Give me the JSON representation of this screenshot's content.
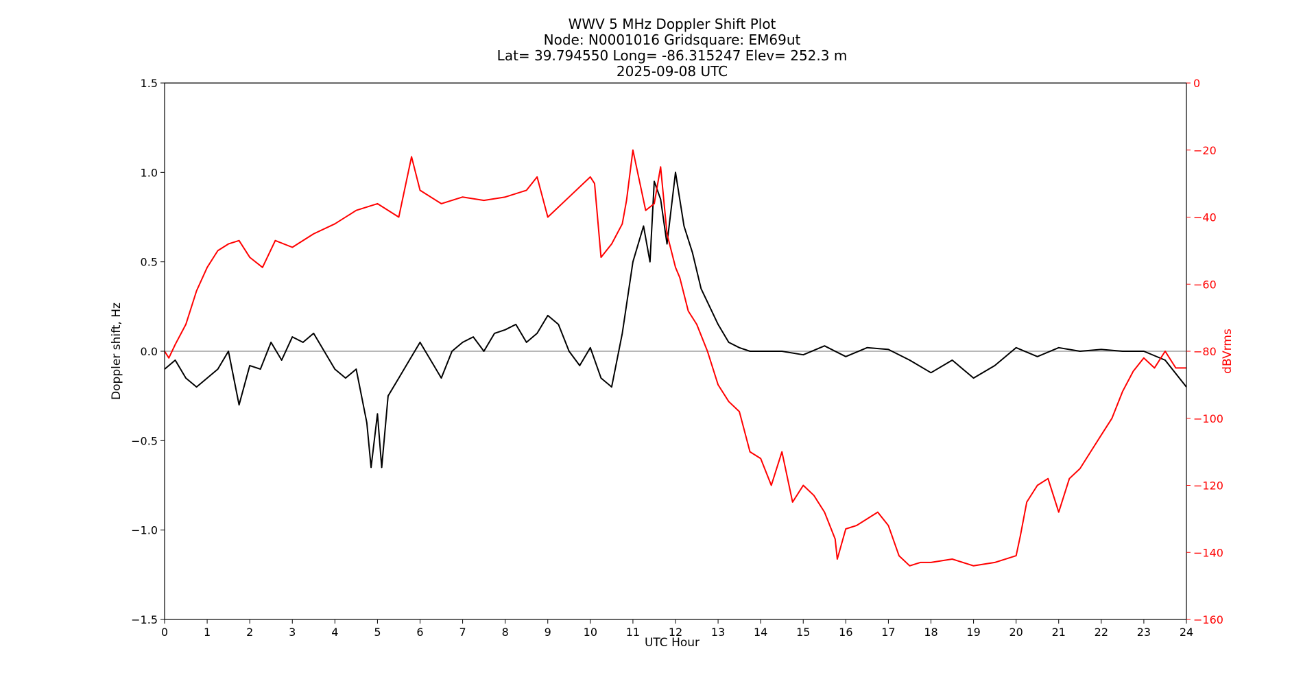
{
  "chart_data": {
    "type": "line",
    "title_lines": [
      "WWV 5 MHz Doppler Shift Plot",
      "Node:  N0001016     Gridsquare:  EM69ut",
      "Lat= 39.794550    Long= -86.315247    Elev= 252.3 m",
      "2025-09-08  UTC"
    ],
    "xlabel": "UTC Hour",
    "ylabel_left": "Doppler shift, Hz",
    "ylabel_right": "dBVrms",
    "xlim": [
      0,
      24
    ],
    "ylim_left": [
      -1.5,
      1.5
    ],
    "ylim_right": [
      -160,
      0
    ],
    "x_ticks": [
      "0",
      "1",
      "2",
      "3",
      "4",
      "5",
      "6",
      "7",
      "8",
      "9",
      "10",
      "11",
      "12",
      "13",
      "14",
      "15",
      "16",
      "17",
      "18",
      "19",
      "20",
      "21",
      "22",
      "23",
      "24"
    ],
    "y_left_ticks": [
      "1.5",
      "1.0",
      "0.5",
      "0.0",
      "−0.5",
      "−1.0",
      "−1.5"
    ],
    "y_right_ticks": [
      "0",
      "−20",
      "−40",
      "−60",
      "−80",
      "−100",
      "−120",
      "−140",
      "−160"
    ],
    "colors": {
      "doppler": "#000000",
      "power": "#ff0000",
      "zero_line": "#a0a0a0",
      "right_axis": "#ff0000"
    },
    "series": [
      {
        "axis": "left",
        "x": [
          0,
          0.25,
          0.5,
          0.75,
          1,
          1.25,
          1.5,
          1.75,
          2,
          2.25,
          2.5,
          2.75,
          3,
          3.25,
          3.5,
          3.75,
          4,
          4.25,
          4.5,
          4.75,
          4.85,
          5,
          5.1,
          5.25,
          5.5,
          5.75,
          6,
          6.25,
          6.5,
          6.75,
          7,
          7.25,
          7.5,
          7.75,
          8,
          8.25,
          8.5,
          8.75,
          9,
          9.25,
          9.5,
          9.75,
          10,
          10.25,
          10.5,
          10.75,
          11,
          11.25,
          11.4,
          11.5,
          11.65,
          11.8,
          12,
          12.2,
          12.4,
          12.6,
          12.8,
          13,
          13.25,
          13.5,
          13.75,
          14,
          14.5,
          15,
          15.5,
          16,
          16.5,
          17,
          17.5,
          18,
          18.5,
          19,
          19.5,
          20,
          20.5,
          21,
          21.5,
          22,
          22.5,
          23,
          23.5,
          24
        ],
        "values": [
          -0.1,
          -0.05,
          -0.15,
          -0.2,
          -0.15,
          -0.1,
          0.0,
          -0.3,
          -0.08,
          -0.1,
          0.05,
          -0.05,
          0.08,
          0.05,
          0.1,
          0.0,
          -0.1,
          -0.15,
          -0.1,
          -0.4,
          -0.65,
          -0.35,
          -0.65,
          -0.25,
          -0.15,
          -0.05,
          0.05,
          -0.05,
          -0.15,
          0.0,
          0.05,
          0.08,
          0.0,
          0.1,
          0.12,
          0.15,
          0.05,
          0.1,
          0.2,
          0.15,
          0.0,
          -0.08,
          0.02,
          -0.15,
          -0.2,
          0.1,
          0.5,
          0.7,
          0.5,
          0.95,
          0.85,
          0.6,
          1.0,
          0.7,
          0.55,
          0.35,
          0.25,
          0.15,
          0.05,
          0.02,
          0.0,
          0.0,
          0.0,
          -0.02,
          0.03,
          -0.03,
          0.02,
          0.01,
          -0.05,
          -0.12,
          -0.05,
          -0.15,
          -0.08,
          0.02,
          -0.03,
          0.02,
          0.0,
          0.01,
          0.0,
          0.0,
          -0.05,
          -0.2
        ]
      },
      {
        "axis": "right",
        "x": [
          0,
          0.1,
          0.25,
          0.5,
          0.75,
          1,
          1.25,
          1.5,
          1.75,
          2,
          2.3,
          2.6,
          3,
          3.5,
          4,
          4.5,
          5,
          5.5,
          5.8,
          6,
          6.5,
          7,
          7.5,
          8,
          8.5,
          8.75,
          9,
          9.5,
          10,
          10.1,
          10.25,
          10.5,
          10.75,
          10.85,
          11,
          11.3,
          11.5,
          11.65,
          11.8,
          12,
          12.1,
          12.3,
          12.5,
          12.75,
          13,
          13.25,
          13.5,
          13.75,
          14,
          14.25,
          14.5,
          14.75,
          15,
          15.25,
          15.5,
          15.75,
          15.8,
          16,
          16.25,
          16.5,
          16.75,
          17,
          17.25,
          17.5,
          17.75,
          18,
          18.5,
          19,
          19.5,
          20,
          20.1,
          20.25,
          20.5,
          20.75,
          21,
          21.25,
          21.5,
          21.75,
          22,
          22.25,
          22.5,
          22.75,
          23,
          23.25,
          23.5,
          23.75,
          24
        ],
        "values": [
          -80,
          -82,
          -78,
          -72,
          -62,
          -55,
          -50,
          -48,
          -47,
          -52,
          -55,
          -47,
          -49,
          -45,
          -42,
          -38,
          -36,
          -40,
          -22,
          -32,
          -36,
          -34,
          -35,
          -34,
          -32,
          -28,
          -40,
          -34,
          -28,
          -30,
          -52,
          -48,
          -42,
          -35,
          -20,
          -38,
          -36,
          -25,
          -45,
          -55,
          -58,
          -68,
          -72,
          -80,
          -90,
          -95,
          -98,
          -110,
          -112,
          -120,
          -110,
          -125,
          -120,
          -123,
          -128,
          -136,
          -142,
          -133,
          -132,
          -130,
          -128,
          -132,
          -141,
          -144,
          -143,
          -143,
          -142,
          -144,
          -143,
          -141,
          -135,
          -125,
          -120,
          -118,
          -128,
          -118,
          -115,
          -110,
          -105,
          -100,
          -92,
          -86,
          -82,
          -85,
          -80,
          -85,
          -85
        ]
      }
    ]
  }
}
